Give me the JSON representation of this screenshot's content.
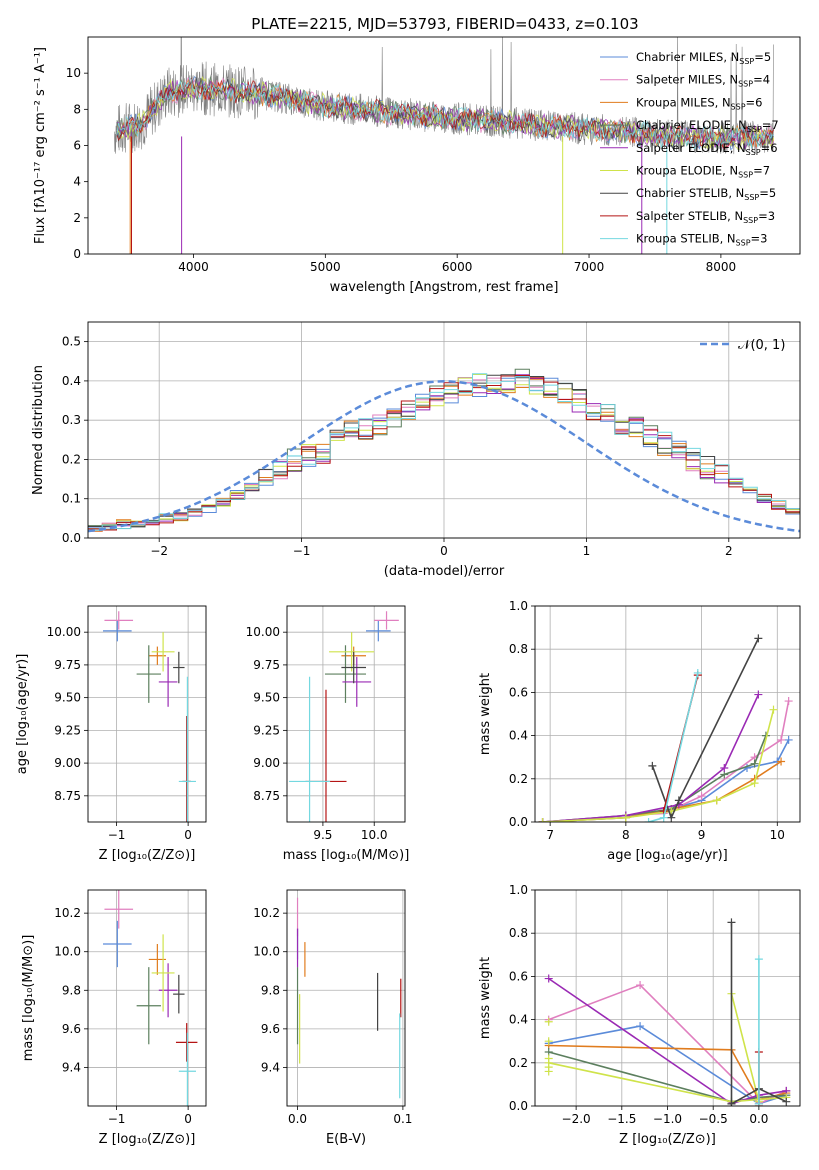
{
  "title": "PLATE=2215, MJD=53793, FIBERID=0433, z=0.103",
  "colors": {
    "series": [
      "#5b8bd9",
      "#e07fbf",
      "#e07c1e",
      "#5c7f5e",
      "#9a2ab4",
      "#cfe34a",
      "#444444",
      "#b51414",
      "#74d8e0"
    ],
    "data_grey": "#808080",
    "normal_curve": "#5b8bd9"
  },
  "chart_data": [
    {
      "id": "spectrum",
      "type": "line",
      "xlabel": "wavelength [Angstrom, rest frame]",
      "ylabel": "Flux [fλ10⁻¹⁷ erg cm⁻² s⁻¹ A⁻¹]",
      "xlim": [
        3200,
        8600
      ],
      "ylim": [
        0,
        12
      ],
      "xticks": [
        "4000",
        "5000",
        "6000",
        "7000",
        "8000"
      ],
      "yticks": [
        "0",
        "2",
        "4",
        "6",
        "8",
        "10"
      ],
      "legend_position": "top-right",
      "series": [
        {
          "name": "Chabrier MILES, N",
          "nssp": "=5"
        },
        {
          "name": "Salpeter MILES, N",
          "nssp": "=4"
        },
        {
          "name": "Kroupa MILES, N",
          "nssp": "=6"
        },
        {
          "name": "Chabrier ELODIE, N",
          "nssp": "=7"
        },
        {
          "name": "Salpeter ELODIE, N",
          "nssp": "=6"
        },
        {
          "name": "Kroupa ELODIE, N",
          "nssp": "=7"
        },
        {
          "name": "Chabrier STELIB, N",
          "nssp": "=5"
        },
        {
          "name": "Salpeter STELIB, N",
          "nssp": "=3"
        },
        {
          "name": "Kroupa STELIB, N",
          "nssp": "=3"
        }
      ],
      "legend_sub": "SSP",
      "continuum": [
        [
          3400,
          6.8
        ],
        [
          3600,
          7.2
        ],
        [
          3800,
          8.9
        ],
        [
          4000,
          9.2
        ],
        [
          4500,
          8.9
        ],
        [
          5000,
          8.2
        ],
        [
          5500,
          7.8
        ],
        [
          6000,
          7.5
        ],
        [
          6500,
          7.2
        ],
        [
          7000,
          6.9
        ],
        [
          7500,
          6.6
        ],
        [
          8000,
          6.4
        ],
        [
          8400,
          6.5
        ]
      ]
    },
    {
      "id": "residuals",
      "type": "step",
      "xlabel": "(data-model)/error",
      "ylabel": "Normed distribution",
      "xlim": [
        -2.5,
        2.5
      ],
      "ylim": [
        0,
        0.55
      ],
      "xticks": [
        "−2",
        "−1",
        "0",
        "1",
        "2"
      ],
      "yticks": [
        "0.0",
        "0.1",
        "0.2",
        "0.3",
        "0.4",
        "0.5"
      ],
      "legend": "𝒩(0, 1)",
      "legend_position": "top-right",
      "bin_width": 0.1,
      "bin_start": -2.5,
      "base_hist": [
        0.025,
        0.03,
        0.035,
        0.04,
        0.045,
        0.05,
        0.055,
        0.065,
        0.075,
        0.09,
        0.11,
        0.13,
        0.155,
        0.18,
        0.2,
        0.21,
        0.22,
        0.245,
        0.27,
        0.28,
        0.29,
        0.31,
        0.32,
        0.34,
        0.36,
        0.37,
        0.38,
        0.39,
        0.395,
        0.4,
        0.4,
        0.39,
        0.38,
        0.365,
        0.35,
        0.33,
        0.31,
        0.29,
        0.28,
        0.26,
        0.24,
        0.22,
        0.2,
        0.18,
        0.16,
        0.14,
        0.12,
        0.1,
        0.085,
        0.07
      ],
      "mods": [
        {
          "idx": 25,
          "v": 0.37
        },
        {
          "idx": 19,
          "v": 0.32
        },
        {
          "idx": 37,
          "v": 0.35
        }
      ]
    },
    {
      "id": "age_vs_Z",
      "type": "errorbar",
      "xlabel": "Z [log₁₀(Z/Z⊙)]",
      "ylabel": "age  [log₁₀(age/yr)]",
      "xlim": [
        -1.4,
        0.25
      ],
      "ylim": [
        8.55,
        10.2
      ],
      "xticks": [
        "−1",
        "0"
      ],
      "yticks": [
        "8.75",
        "9.00",
        "9.25",
        "9.50",
        "9.75",
        "10.00"
      ],
      "points": [
        {
          "x": -0.99,
          "xe": 0.2,
          "y": 10.01,
          "ye": 0.08,
          "c": 0
        },
        {
          "x": -0.97,
          "xe": 0.2,
          "y": 10.09,
          "ye": 0.07,
          "c": 1
        },
        {
          "x": -0.43,
          "xe": 0.12,
          "y": 9.82,
          "ye": 0.07,
          "c": 2
        },
        {
          "x": -0.55,
          "xe": 0.17,
          "y": 9.68,
          "ye": 0.22,
          "c": 3
        },
        {
          "x": -0.28,
          "xe": 0.13,
          "y": 9.62,
          "ye": 0.19,
          "c": 4
        },
        {
          "x": -0.35,
          "xe": 0.16,
          "y": 9.85,
          "ye": 0.15,
          "c": 5
        },
        {
          "x": -0.13,
          "xe": 0.08,
          "y": 9.73,
          "ye": 0.12,
          "c": 6
        },
        {
          "x": -0.02,
          "xe": 0.06,
          "y": 8.86,
          "ye": 0.5,
          "c": 7
        },
        {
          "x": -0.01,
          "xe": 0.12,
          "y": 8.86,
          "ye": 0.8,
          "c": 8
        }
      ]
    },
    {
      "id": "age_vs_mass",
      "type": "errorbar",
      "xlabel": "mass [log₁₀(M/M⊙)]",
      "ylabel": "",
      "xlim": [
        9.15,
        10.3
      ],
      "ylim": [
        8.55,
        10.2
      ],
      "xticks": [
        "9.5",
        "10.0"
      ],
      "yticks": [
        "8.75",
        "9.00",
        "9.25",
        "9.50",
        "9.75",
        "10.00"
      ],
      "points": [
        {
          "x": 10.04,
          "xe": 0.12,
          "y": 10.01,
          "ye": 0.08,
          "c": 0
        },
        {
          "x": 10.12,
          "xe": 0.12,
          "y": 10.09,
          "ye": 0.07,
          "c": 1
        },
        {
          "x": 9.8,
          "xe": 0.12,
          "y": 9.82,
          "ye": 0.07,
          "c": 2
        },
        {
          "x": 9.72,
          "xe": 0.2,
          "y": 9.68,
          "ye": 0.22,
          "c": 3
        },
        {
          "x": 9.83,
          "xe": 0.14,
          "y": 9.62,
          "ye": 0.19,
          "c": 4
        },
        {
          "x": 9.78,
          "xe": 0.22,
          "y": 9.85,
          "ye": 0.15,
          "c": 5
        },
        {
          "x": 9.8,
          "xe": 0.12,
          "y": 9.73,
          "ye": 0.12,
          "c": 6
        },
        {
          "x": 9.53,
          "xe": 0.2,
          "y": 8.86,
          "ye": 0.7,
          "c": 7
        },
        {
          "x": 9.37,
          "xe": 0.2,
          "y": 8.86,
          "ye": 0.8,
          "c": 8
        }
      ]
    },
    {
      "id": "weight_vs_age",
      "type": "line",
      "xlabel": "age  [log₁₀(age/yr)]",
      "ylabel": "mass weight",
      "xlim": [
        6.8,
        10.3
      ],
      "ylim": [
        0,
        1
      ],
      "xticks": [
        "7",
        "8",
        "9",
        "10"
      ],
      "yticks": [
        "0.0",
        "0.2",
        "0.4",
        "0.6",
        "0.8",
        "1.0"
      ],
      "series": [
        {
          "c": 0,
          "pts": [
            [
              6.9,
              0.0
            ],
            [
              8.0,
              0.02
            ],
            [
              8.5,
              0.05
            ],
            [
              9.0,
              0.1
            ],
            [
              9.6,
              0.25
            ],
            [
              10.0,
              0.28
            ],
            [
              10.15,
              0.38
            ]
          ]
        },
        {
          "c": 1,
          "pts": [
            [
              6.9,
              0.0
            ],
            [
              8.0,
              0.03
            ],
            [
              8.5,
              0.04
            ],
            [
              9.0,
              0.12
            ],
            [
              9.7,
              0.3
            ],
            [
              10.05,
              0.38
            ],
            [
              10.15,
              0.56
            ]
          ]
        },
        {
          "c": 2,
          "pts": [
            [
              6.9,
              0.0
            ],
            [
              8.0,
              0.02
            ],
            [
              8.6,
              0.06
            ],
            [
              9.2,
              0.1
            ],
            [
              9.7,
              0.2
            ],
            [
              10.05,
              0.28
            ]
          ]
        },
        {
          "c": 3,
          "pts": [
            [
              6.9,
              0.0
            ],
            [
              8.0,
              0.03
            ],
            [
              8.6,
              0.06
            ],
            [
              9.3,
              0.22
            ],
            [
              9.7,
              0.27
            ],
            [
              9.85,
              0.4
            ]
          ]
        },
        {
          "c": 4,
          "pts": [
            [
              6.9,
              0.0
            ],
            [
              8.0,
              0.03
            ],
            [
              8.7,
              0.08
            ],
            [
              9.3,
              0.25
            ],
            [
              9.75,
              0.59
            ]
          ]
        },
        {
          "c": 5,
          "pts": [
            [
              6.9,
              0.0
            ],
            [
              8.0,
              0.02
            ],
            [
              8.6,
              0.05
            ],
            [
              9.2,
              0.1
            ],
            [
              9.7,
              0.18
            ],
            [
              9.95,
              0.52
            ]
          ]
        },
        {
          "c": 6,
          "pts": [
            [
              8.35,
              0.26
            ],
            [
              8.6,
              0.02
            ],
            [
              8.7,
              0.1
            ],
            [
              9.75,
              0.85
            ]
          ]
        },
        {
          "c": 7,
          "pts": [
            [
              8.5,
              0.05
            ],
            [
              8.95,
              0.68
            ]
          ]
        },
        {
          "c": 8,
          "pts": [
            [
              8.3,
              0.0
            ],
            [
              8.5,
              0.02
            ],
            [
              8.95,
              0.69
            ]
          ]
        }
      ]
    },
    {
      "id": "mass_vs_Z",
      "type": "errorbar",
      "xlabel": "Z [log₁₀(Z/Z⊙)]",
      "ylabel": "mass [log₁₀(M/M⊙)]",
      "xlim": [
        -1.4,
        0.25
      ],
      "ylim": [
        9.2,
        10.32
      ],
      "xticks": [
        "−1",
        "0"
      ],
      "yticks": [
        "9.4",
        "9.6",
        "9.8",
        "10.0",
        "10.2"
      ],
      "points": [
        {
          "x": -0.99,
          "xe": 0.2,
          "y": 10.04,
          "ye": 0.12,
          "c": 0
        },
        {
          "x": -0.97,
          "xe": 0.2,
          "y": 10.22,
          "ye": 0.1,
          "c": 1
        },
        {
          "x": -0.43,
          "xe": 0.12,
          "y": 9.96,
          "ye": 0.08,
          "c": 2
        },
        {
          "x": -0.55,
          "xe": 0.17,
          "y": 9.72,
          "ye": 0.2,
          "c": 3
        },
        {
          "x": -0.28,
          "xe": 0.13,
          "y": 9.8,
          "ye": 0.14,
          "c": 4
        },
        {
          "x": -0.35,
          "xe": 0.16,
          "y": 9.89,
          "ye": 0.2,
          "c": 5
        },
        {
          "x": -0.13,
          "xe": 0.08,
          "y": 9.78,
          "ye": 0.1,
          "c": 6
        },
        {
          "x": -0.02,
          "xe": 0.15,
          "y": 9.53,
          "ye": 0.1,
          "c": 7
        },
        {
          "x": -0.01,
          "xe": 0.12,
          "y": 9.38,
          "ye": 0.2,
          "c": 8
        }
      ]
    },
    {
      "id": "mass_vs_ebv",
      "type": "errorbar",
      "xlabel": "E(B-V)",
      "ylabel": "",
      "xlim": [
        -0.01,
        0.102
      ],
      "ylim": [
        9.2,
        10.32
      ],
      "xticks": [
        "0.0",
        "0.1"
      ],
      "yticks": [
        "9.4",
        "9.6",
        "9.8",
        "10.0",
        "10.2"
      ],
      "points": [
        {
          "x": 0.0,
          "xe": 0.0,
          "y": 10.04,
          "ye": 0.08,
          "c": 0
        },
        {
          "x": 0.0,
          "xe": 0.0,
          "y": 10.18,
          "ye": 0.1,
          "c": 1
        },
        {
          "x": 0.007,
          "xe": 0.0,
          "y": 9.96,
          "ye": 0.09,
          "c": 2
        },
        {
          "x": 0.0,
          "xe": 0.0,
          "y": 9.72,
          "ye": 0.2,
          "c": 3
        },
        {
          "x": 0.0,
          "xe": 0.0,
          "y": 10.02,
          "ye": 0.1,
          "c": 4
        },
        {
          "x": 0.002,
          "xe": 0.0,
          "y": 9.6,
          "ye": 0.18,
          "c": 5
        },
        {
          "x": 0.076,
          "xe": 0.0,
          "y": 9.74,
          "ye": 0.15,
          "c": 6
        },
        {
          "x": 0.098,
          "xe": 0.0,
          "y": 9.76,
          "ye": 0.1,
          "c": 7
        },
        {
          "x": 0.097,
          "xe": 0.0,
          "y": 9.46,
          "ye": 0.22,
          "c": 8
        }
      ]
    },
    {
      "id": "weight_vs_Z",
      "type": "line",
      "xlabel": "Z [log₁₀(Z/Z⊙)]",
      "ylabel": "mass weight",
      "xlim": [
        -2.45,
        0.45
      ],
      "ylim": [
        0,
        1
      ],
      "xticks": [
        "−2.0",
        "−1.5",
        "−1.0",
        "−0.5",
        "0.0"
      ],
      "yticks": [
        "0.0",
        "0.2",
        "0.4",
        "0.6",
        "0.8",
        "1.0"
      ],
      "series": [
        {
          "c": 0,
          "pts": [
            [
              -2.3,
              0.29
            ],
            [
              -1.3,
              0.37
            ],
            [
              0.0,
              0.01
            ],
            [
              0.3,
              0.05
            ]
          ]
        },
        {
          "c": 1,
          "pts": [
            [
              -2.3,
              0.4
            ],
            [
              -1.3,
              0.56
            ],
            [
              0.0,
              0.01
            ],
            [
              0.3,
              0.07
            ]
          ]
        },
        {
          "c": 2,
          "pts": [
            [
              -2.3,
              0.28
            ],
            [
              -0.3,
              0.26
            ],
            [
              0.0,
              0.03
            ],
            [
              0.3,
              0.06
            ]
          ]
        },
        {
          "c": 3,
          "pts": [
            [
              -2.3,
              0.25
            ],
            [
              -0.3,
              0.02
            ],
            [
              0.0,
              0.04
            ],
            [
              0.3,
              0.05
            ]
          ]
        },
        {
          "c": 4,
          "pts": [
            [
              -2.3,
              0.59
            ],
            [
              -0.3,
              0.01
            ],
            [
              0.0,
              0.05
            ],
            [
              0.3,
              0.07
            ]
          ]
        },
        {
          "c": 5,
          "pts": [
            [
              -2.3,
              0.2
            ],
            [
              -0.3,
              0.02
            ],
            [
              0.0,
              0.03
            ],
            [
              0.3,
              0.04
            ]
          ]
        },
        {
          "c": 5,
          "pts": [
            [
              -0.3,
              0.52
            ],
            [
              0.0,
              0.02
            ]
          ]
        },
        {
          "c": 6,
          "pts": [
            [
              -0.3,
              0.85
            ],
            [
              -0.3,
              0.01
            ],
            [
              0.0,
              0.08
            ],
            [
              0.3,
              0.02
            ]
          ]
        },
        {
          "c": 7,
          "pts": [
            [
              0.0,
              0.0
            ],
            [
              0.0,
              0.25
            ]
          ]
        },
        {
          "c": 8,
          "pts": [
            [
              0.0,
              0.68
            ],
            [
              0.0,
              0.01
            ]
          ]
        }
      ],
      "extra_marks": [
        [
          -2.3,
          0.16
        ],
        [
          -2.3,
          0.18
        ],
        [
          -2.3,
          0.22
        ],
        [
          -2.3,
          0.3
        ],
        [
          -2.3,
          0.39
        ]
      ]
    }
  ]
}
